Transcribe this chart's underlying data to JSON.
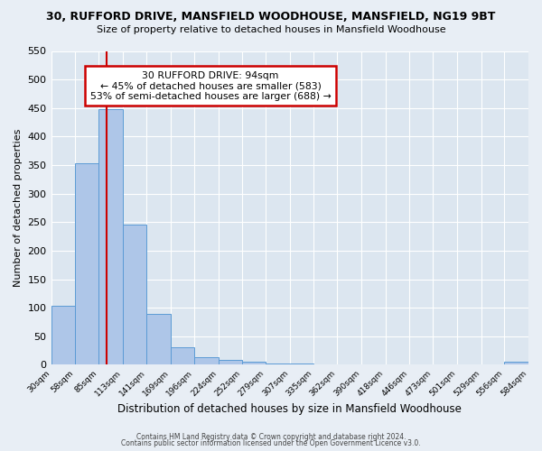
{
  "title1": "30, RUFFORD DRIVE, MANSFIELD WOODHOUSE, MANSFIELD, NG19 9BT",
  "title2": "Size of property relative to detached houses in Mansfield Woodhouse",
  "xlabel": "Distribution of detached houses by size in Mansfield Woodhouse",
  "ylabel": "Number of detached properties",
  "bin_edges": [
    30,
    58,
    85,
    113,
    141,
    169,
    196,
    224,
    252,
    279,
    307,
    335,
    362,
    390,
    418,
    446,
    473,
    501,
    529,
    556,
    584
  ],
  "bin_counts": [
    104,
    353,
    448,
    246,
    89,
    31,
    13,
    8,
    5,
    2,
    2,
    0,
    0,
    0,
    0,
    0,
    0,
    0,
    0,
    5
  ],
  "bar_color": "#aec6e8",
  "bar_edge_color": "#5b9bd5",
  "redline_x": 94,
  "annotation_title": "30 RUFFORD DRIVE: 94sqm",
  "annotation_line1": "← 45% of detached houses are smaller (583)",
  "annotation_line2": "53% of semi-detached houses are larger (688) →",
  "annotation_box_color": "#ffffff",
  "annotation_box_edge": "#cc0000",
  "redline_color": "#cc0000",
  "ylim": [
    0,
    550
  ],
  "footer1": "Contains HM Land Registry data © Crown copyright and database right 2024.",
  "footer2": "Contains public sector information licensed under the Open Government Licence v3.0.",
  "background_color": "#e8eef5",
  "plot_bg_color": "#dce6f0",
  "tick_labels": [
    "30sqm",
    "58sqm",
    "85sqm",
    "113sqm",
    "141sqm",
    "169sqm",
    "196sqm",
    "224sqm",
    "252sqm",
    "279sqm",
    "307sqm",
    "335sqm",
    "362sqm",
    "390sqm",
    "418sqm",
    "446sqm",
    "473sqm",
    "501sqm",
    "529sqm",
    "556sqm",
    "584sqm"
  ],
  "yticks": [
    0,
    50,
    100,
    150,
    200,
    250,
    300,
    350,
    400,
    450,
    500,
    550
  ]
}
